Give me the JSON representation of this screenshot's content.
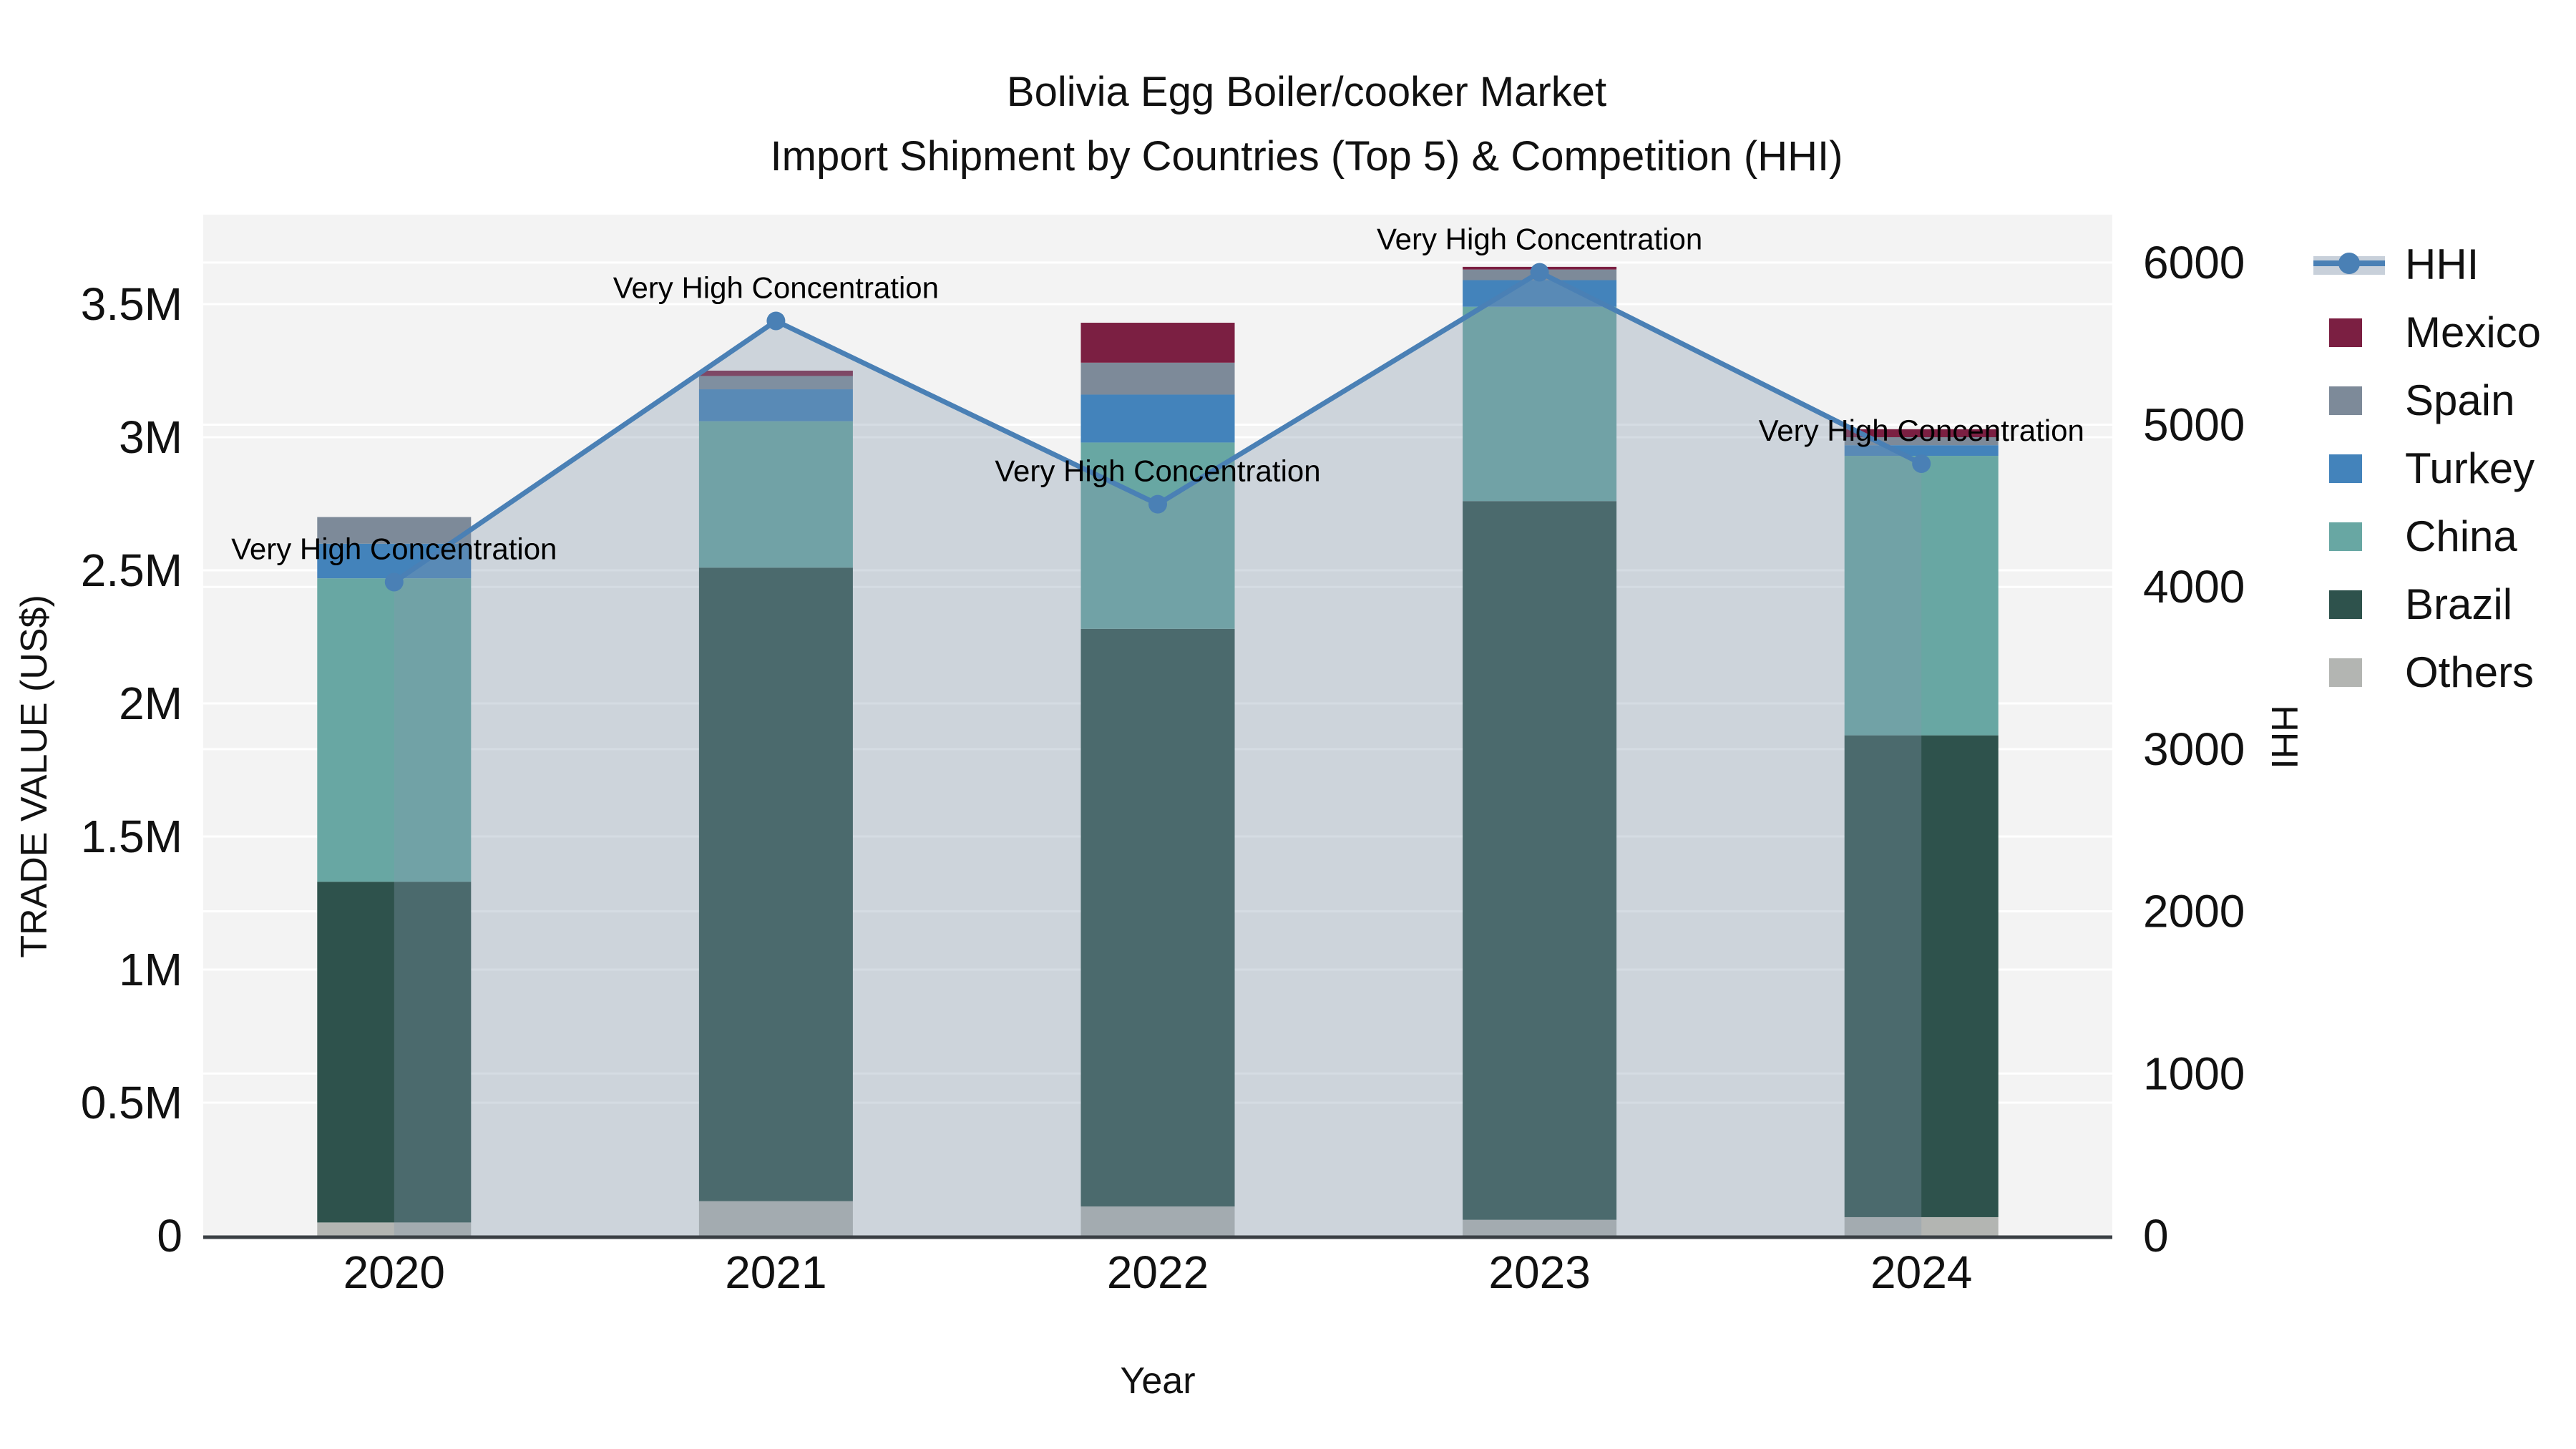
{
  "chart_data": {
    "type": "bar+line",
    "title": "Bolivia Egg Boiler/cooker Market",
    "subtitle": "Import Shipment by Countries (Top 5) & Competition (HHI)",
    "xlabel": "Year",
    "ylabel_left": "TRADE VALUE (US$)",
    "ylabel_right": "HHI",
    "categories": [
      "2020",
      "2021",
      "2022",
      "2023",
      "2024"
    ],
    "series": [
      {
        "name": "Others",
        "color": "#b3b5b2",
        "values": [
          50000,
          130000,
          110000,
          60000,
          70000
        ]
      },
      {
        "name": "Brazil",
        "color": "#2e524c",
        "values": [
          1280000,
          2380000,
          2170000,
          2700000,
          1810000
        ]
      },
      {
        "name": "China",
        "color": "#68a7a3",
        "values": [
          1140000,
          550000,
          700000,
          730000,
          1050000
        ]
      },
      {
        "name": "Turkey",
        "color": "#4383bb",
        "values": [
          130000,
          120000,
          180000,
          100000,
          40000
        ]
      },
      {
        "name": "Spain",
        "color": "#7d8a99",
        "values": [
          100000,
          50000,
          120000,
          40000,
          30000
        ]
      },
      {
        "name": "Mexico",
        "color": "#7b1f42",
        "values": [
          0,
          20000,
          150000,
          10000,
          30000
        ]
      }
    ],
    "line_series": {
      "name": "HHI",
      "color": "#4a80b5",
      "area_fill": "rgba(133,151,172,0.34)",
      "values": [
        4030,
        5640,
        4510,
        5940,
        4760
      ]
    },
    "annotations": [
      {
        "x": "2020",
        "text": "Very High Concentration"
      },
      {
        "x": "2021",
        "text": "Very High Concentration"
      },
      {
        "x": "2022",
        "text": "Very High Concentration"
      },
      {
        "x": "2023",
        "text": "Very High Concentration"
      },
      {
        "x": "2024",
        "text": "Very High Concentration"
      }
    ],
    "yticks_left": {
      "values": [
        0,
        500000,
        1000000,
        1500000,
        2000000,
        2500000,
        3000000,
        3500000
      ],
      "labels": [
        "0",
        "0.5M",
        "1M",
        "1.5M",
        "2M",
        "2.5M",
        "3M",
        "3.5M"
      ]
    },
    "yticks_right": {
      "values": [
        0,
        1000,
        2000,
        3000,
        4000,
        5000,
        6000
      ],
      "labels": [
        "0",
        "1000",
        "2000",
        "3000",
        "4000",
        "5000",
        "6000"
      ]
    },
    "ylim_left": [
      0,
      3836000
    ],
    "ylim_right": [
      0,
      6295
    ],
    "grid": true,
    "legend_position": "right",
    "legend_order": [
      "HHI",
      "Mexico",
      "Spain",
      "Turkey",
      "China",
      "Brazil",
      "Others"
    ],
    "colors": {
      "plot_background": "#f3f3f3",
      "paper_background": "#ffffff",
      "gridline": "#ffffff",
      "axis_line": "#3a3f44",
      "text": "#111111"
    }
  }
}
